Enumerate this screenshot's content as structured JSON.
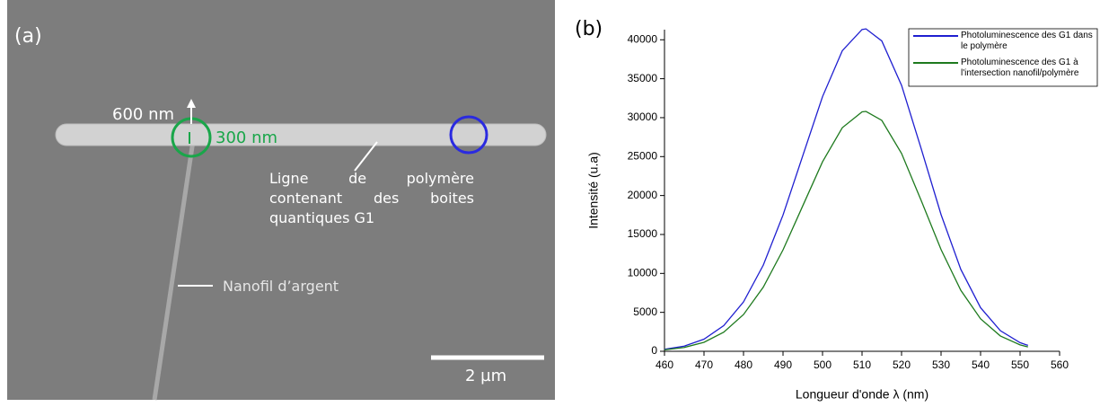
{
  "sem_image": {
    "panel_label": "(a)",
    "width_label": "600 nm",
    "diameter_label": "300 nm",
    "polymer_label": "Ligne de polymère contenant des boites quantiques G1",
    "nanowire_label": "Nanofil d’argent",
    "scale_label": "2 µm"
  },
  "chart_data": {
    "type": "line",
    "panel_label": "(b)",
    "x_label": "Longueur d'onde λ (nm)",
    "y_label": "Intensité (u.a)",
    "x": [
      460,
      465,
      470,
      475,
      480,
      485,
      490,
      495,
      500,
      505,
      510,
      511,
      515,
      520,
      525,
      530,
      535,
      540,
      545,
      550,
      552
    ],
    "series": [
      {
        "name": "Photoluminescence des G1 dans le polymère",
        "color": "#1f1fd0",
        "values": [
          257,
          664,
          1554,
          3294,
          6340,
          11060,
          17500,
          25110,
          32700,
          38590,
          41320,
          41400,
          39850,
          34150,
          25970,
          17550,
          10520,
          5600,
          2650,
          1110,
          760
        ]
      },
      {
        "name": "Photoluminescence des G1 à l'intersection nanofil/polymère",
        "color": "#1e7a1e",
        "values": [
          191,
          494,
          1156,
          2451,
          4717,
          8229,
          13020,
          18680,
          24330,
          28710,
          30740,
          30800,
          29650,
          25410,
          19320,
          13060,
          7830,
          4170,
          1970,
          826,
          565
        ]
      }
    ],
    "xlim": [
      460,
      560
    ],
    "ylim": [
      0,
      41300
    ],
    "xticks": [
      460,
      470,
      480,
      490,
      500,
      510,
      520,
      530,
      540,
      550,
      560
    ],
    "yticks": [
      0,
      5000,
      10000,
      15000,
      20000,
      25000,
      30000,
      35000,
      40000
    ],
    "legend": "upper right"
  }
}
